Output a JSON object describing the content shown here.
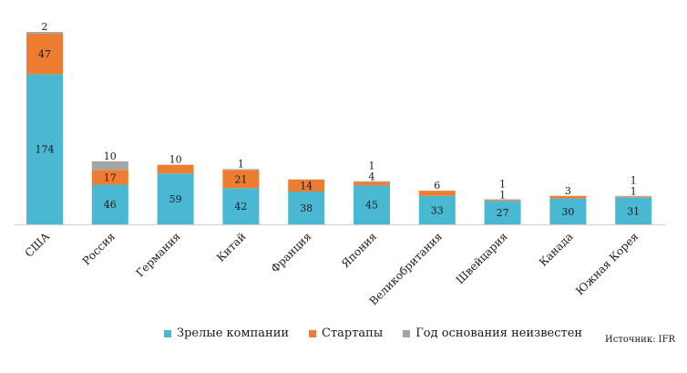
{
  "chart_data": {
    "type": "bar",
    "stacked": true,
    "categories": [
      "США",
      "Россия",
      "Германия",
      "Китай",
      "Франция",
      "Япония",
      "Великобритания",
      "Швейцария",
      "Канада",
      "Южная Корея"
    ],
    "series": [
      {
        "name": "Зрелые компании",
        "color": "#4bb8d3",
        "values": [
          174,
          46,
          59,
          42,
          38,
          45,
          33,
          27,
          30,
          31
        ]
      },
      {
        "name": "Стартапы",
        "color": "#ee7d32",
        "values": [
          47,
          17,
          10,
          21,
          14,
          4,
          6,
          1,
          3,
          1
        ]
      },
      {
        "name": "Год основания неизвестен",
        "color": "#a5a5a5",
        "values": [
          2,
          10,
          0,
          1,
          0,
          1,
          0,
          1,
          0,
          1
        ]
      }
    ],
    "ylim": [
      0,
      223
    ],
    "grid": false,
    "legend_position": "bottom"
  },
  "source_text": "Источник: IFR"
}
